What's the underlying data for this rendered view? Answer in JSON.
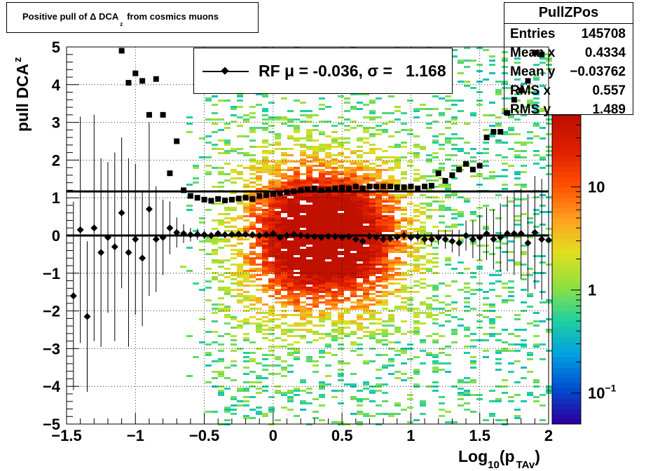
{
  "title": {
    "prefix": "Positive pull of",
    "delta": "Δ DCA",
    "sub": "z",
    "suffix": "from cosmics muons"
  },
  "stats": {
    "name": "PullZPos",
    "rows": [
      {
        "label": "Entries",
        "value": "145708"
      },
      {
        "label": "Mean x",
        "value": "0.4334"
      },
      {
        "label": "Mean y",
        "value": "−0.03762"
      },
      {
        "label": "RMS x",
        "value": "0.557"
      },
      {
        "label": "RMS y",
        "value": "1.489"
      }
    ]
  },
  "legend": {
    "text": "RF μ = -0.036, σ =   1.168"
  },
  "colors": {
    "marker": "#000000",
    "palette": [
      "#2b00a0",
      "#0050d0",
      "#00a0e0",
      "#20d0a0",
      "#90e040",
      "#e0e020",
      "#ffa020",
      "#ff5000",
      "#e02000",
      "#c01000"
    ]
  },
  "chart_data": {
    "type": "heatmap",
    "xlabel": "Log",
    "xlabel_sub1": "10",
    "xlabel_mid": "(p",
    "xlabel_sub2": "TAv",
    "xlabel_end": ")",
    "ylabel": "pull DCA",
    "ylabel_sub": "z",
    "xlim": [
      -1.5,
      2
    ],
    "ylim": [
      -5,
      5
    ],
    "xticks": [
      {
        "v": -1.5,
        "label": "−1.5"
      },
      {
        "v": -1,
        "label": "−1"
      },
      {
        "v": -0.5,
        "label": "−0.5"
      },
      {
        "v": 0,
        "label": "0"
      },
      {
        "v": 0.5,
        "label": "0.5"
      },
      {
        "v": 1,
        "label": "1"
      },
      {
        "v": 1.5,
        "label": "1.5"
      },
      {
        "v": 2,
        "label": "2"
      }
    ],
    "yticks": [
      {
        "v": -5,
        "label": "−5"
      },
      {
        "v": -4,
        "label": "−4"
      },
      {
        "v": -3,
        "label": "−3"
      },
      {
        "v": -2,
        "label": "−2"
      },
      {
        "v": -1,
        "label": "−1"
      },
      {
        "v": 0,
        "label": "0"
      },
      {
        "v": 1,
        "label": "1"
      },
      {
        "v": 2,
        "label": "2"
      },
      {
        "v": 3,
        "label": "3"
      },
      {
        "v": 4,
        "label": "4"
      },
      {
        "v": 5,
        "label": "5"
      }
    ],
    "colorbar": {
      "scale": "log",
      "range": [
        0.05,
        50
      ],
      "ticks": [
        {
          "v": 0.1,
          "base": "10",
          "exp": "−1"
        },
        {
          "v": 1,
          "base": "1",
          "exp": ""
        },
        {
          "v": 10,
          "base": "10",
          "exp": ""
        }
      ]
    },
    "fit_lines": [
      {
        "name": "mean",
        "y": 0.0
      },
      {
        "name": "sigma",
        "y": 1.168
      }
    ],
    "mean_points": {
      "marker": "diamond",
      "x": [
        -1.45,
        -1.4,
        -1.35,
        -1.3,
        -1.25,
        -1.2,
        -1.15,
        -1.1,
        -1.05,
        -1.0,
        -0.95,
        -0.9,
        -0.85,
        -0.8,
        -0.75,
        -0.7,
        -0.65,
        -0.6,
        -0.55,
        -0.5,
        -0.45,
        -0.4,
        -0.35,
        -0.3,
        -0.25,
        -0.2,
        -0.15,
        -0.1,
        -0.05,
        0.0,
        0.05,
        0.1,
        0.15,
        0.2,
        0.25,
        0.3,
        0.35,
        0.4,
        0.45,
        0.5,
        0.55,
        0.6,
        0.65,
        0.7,
        0.75,
        0.8,
        0.85,
        0.9,
        0.95,
        1.0,
        1.05,
        1.1,
        1.15,
        1.2,
        1.25,
        1.3,
        1.35,
        1.4,
        1.45,
        1.5,
        1.55,
        1.6,
        1.65,
        1.7,
        1.75,
        1.8,
        1.85,
        1.9,
        1.95,
        2.0
      ],
      "y": [
        -1.6,
        0.15,
        -2.15,
        0.2,
        -0.45,
        -0.05,
        -0.3,
        0.6,
        -0.45,
        -0.1,
        -0.6,
        0.7,
        -0.1,
        -0.05,
        0.2,
        0.08,
        0.05,
        0.02,
        0.03,
        0.02,
        0.0,
        0.05,
        0.02,
        0.03,
        0.04,
        0.03,
        0.02,
        0.0,
        0.02,
        0.05,
        -0.05,
        0.0,
        0.03,
        0.0,
        -0.02,
        -0.03,
        -0.05,
        -0.02,
        -0.03,
        -0.05,
        -0.03,
        -0.1,
        -0.15,
        -0.02,
        -0.05,
        -0.1,
        -0.08,
        -0.05,
        0.0,
        -0.05,
        -0.03,
        -0.1,
        -0.1,
        -0.05,
        -0.1,
        -0.15,
        -0.2,
        0.0,
        -0.1,
        -0.05,
        0.05,
        -0.1,
        -0.05,
        0.05,
        0.05,
        0.05,
        -0.2,
        0.08,
        -0.1,
        -0.12
      ],
      "err": [
        2.5,
        3.0,
        2.0,
        3.0,
        2.5,
        2.0,
        2.5,
        2.0,
        2.5,
        2.0,
        1.8,
        2.3,
        1.4,
        1.0,
        0.7,
        0.4,
        0.25,
        0.18,
        0.15,
        0.12,
        0.1,
        0.09,
        0.08,
        0.07,
        0.07,
        0.06,
        0.06,
        0.06,
        0.06,
        0.06,
        0.06,
        0.06,
        0.06,
        0.06,
        0.06,
        0.06,
        0.06,
        0.06,
        0.06,
        0.06,
        0.06,
        0.07,
        0.07,
        0.08,
        0.08,
        0.09,
        0.1,
        0.1,
        0.12,
        0.12,
        0.14,
        0.15,
        0.17,
        0.2,
        0.25,
        0.3,
        0.35,
        0.4,
        0.5,
        0.6,
        0.7,
        0.8,
        0.9,
        1.0,
        1.1,
        1.2,
        1.3,
        1.5,
        1.6,
        1.8
      ]
    },
    "sigma_points": {
      "marker": "square",
      "x": [
        -1.1,
        -1.05,
        -1.0,
        -0.95,
        -0.9,
        -0.85,
        -0.8,
        -0.75,
        -0.7,
        -0.65,
        -0.6,
        -0.55,
        -0.5,
        -0.45,
        -0.4,
        -0.35,
        -0.3,
        -0.25,
        -0.2,
        -0.15,
        -0.1,
        -0.05,
        0.0,
        0.05,
        0.1,
        0.15,
        0.2,
        0.25,
        0.3,
        0.35,
        0.4,
        0.45,
        0.5,
        0.55,
        0.6,
        0.65,
        0.7,
        0.75,
        0.8,
        0.85,
        0.9,
        0.95,
        1.0,
        1.05,
        1.1,
        1.15,
        1.2,
        1.25,
        1.3,
        1.35,
        1.4,
        1.45,
        1.5,
        1.55,
        1.6,
        1.65,
        1.7,
        1.75,
        1.8,
        1.85,
        1.9,
        1.95
      ],
      "y": [
        4.9,
        4.05,
        4.3,
        4.1,
        3.2,
        4.15,
        3.2,
        1.65,
        2.5,
        1.2,
        1.05,
        1.0,
        0.95,
        0.92,
        0.97,
        0.93,
        0.95,
        0.98,
        1.0,
        0.97,
        1.05,
        1.07,
        1.1,
        1.12,
        1.15,
        1.17,
        1.2,
        1.22,
        1.25,
        1.2,
        1.22,
        1.25,
        1.27,
        1.25,
        1.3,
        1.25,
        1.3,
        1.3,
        1.3,
        1.3,
        1.28,
        1.28,
        1.3,
        1.25,
        1.3,
        1.32,
        1.65,
        1.45,
        1.6,
        1.75,
        1.9,
        1.75,
        1.85,
        2.6,
        2.75,
        2.75,
        3.25,
        3.6,
        3.85,
        4.1,
        4.85,
        4.8
      ]
    }
  }
}
